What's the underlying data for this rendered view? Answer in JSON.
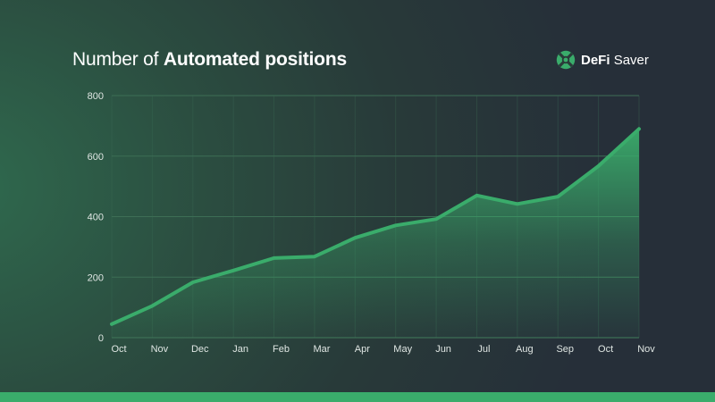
{
  "header": {
    "title_light": "Number of",
    "title_bold": "Automated positions"
  },
  "brand": {
    "name_bold": "DeFi",
    "name_light": "Saver",
    "icon": "defi-saver-logo-icon",
    "color": "#3aac6b"
  },
  "colors": {
    "line": "#3aac6b",
    "fill": "#3aac6b",
    "grid": "#3d6e55",
    "bottom_bar": "#3aac6b"
  },
  "chart_data": {
    "type": "area",
    "categories": [
      "Oct",
      "Nov",
      "Dec",
      "Jan",
      "Feb",
      "Mar",
      "Apr",
      "May",
      "Jun",
      "Jul",
      "Aug",
      "Sep",
      "Oct",
      "Nov"
    ],
    "series": [
      {
        "values": [
          45,
          105,
          183,
          222,
          263,
          268,
          330,
          371,
          392,
          470,
          442,
          466,
          567,
          690
        ]
      }
    ],
    "title": "Number of Automated positions",
    "xlabel": "",
    "ylabel": "",
    "ylim": [
      0,
      800
    ],
    "yticks": [
      0,
      200,
      400,
      600,
      800
    ],
    "grid": true,
    "legend": "none"
  }
}
